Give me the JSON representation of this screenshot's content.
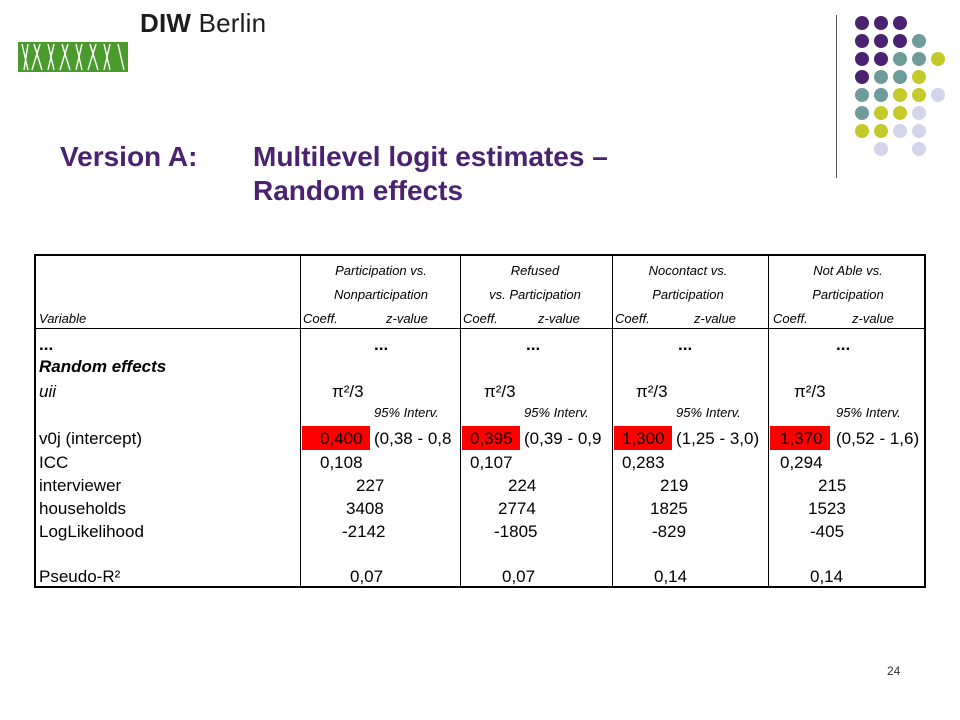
{
  "logo": {
    "brand_bold": "DIW",
    "brand_rest": " Berlin"
  },
  "title": {
    "prefix": "Version A:",
    "line1": "Multilevel logit estimates –",
    "line2": "Random effects"
  },
  "colors": {
    "title": "#4b2270",
    "logo_green": "#4b9a2d",
    "highlight": "#ff0000",
    "dot_purple": "#4b2270",
    "dot_teal": "#6e9c9a",
    "dot_olive": "#c5c92a",
    "dot_lavender": "#d4d4ea"
  },
  "table": {
    "headers": [
      {
        "line1": "Participation vs.",
        "line2": "Nonparticipation"
      },
      {
        "line1": "Refused",
        "line2": "vs. Participation"
      },
      {
        "line1": "Nocontact vs.",
        "line2": "Participation"
      },
      {
        "line1": "Not Able vs.",
        "line2": "Participation"
      }
    ],
    "variable_header": "Variable",
    "coeff_label": "Coeff.",
    "zvalue_label": "z-value",
    "interval_label": "95% Interv.",
    "row_labels": {
      "dots": "...",
      "random_effects": "Random effects",
      "uii": "uii",
      "v0j": "v0j (intercept)",
      "icc": "ICC",
      "interviewer": "interviewer",
      "households": "households",
      "loglik": "LogLikelihood",
      "pseudo": "Pseudo-R²"
    },
    "columns": [
      {
        "dots": "...",
        "uii": "π²/3",
        "v0j": "0,400",
        "v0j_ci": "(0,38 - 0,8",
        "icc": "0,108",
        "interviewer": "227",
        "households": "3408",
        "loglik": "-2142",
        "pseudo": "0,07"
      },
      {
        "dots": "...",
        "uii": "π²/3",
        "v0j": "0,395",
        "v0j_ci": "(0,39 - 0,9",
        "icc": "0,107",
        "interviewer": "224",
        "households": "2774",
        "loglik": "-1805",
        "pseudo": "0,07"
      },
      {
        "dots": "...",
        "uii": "π²/3",
        "v0j": "1,300",
        "v0j_ci": "(1,25 - 3,0)",
        "icc": "0,283",
        "interviewer": "219",
        "households": "1825",
        "loglik": "-829",
        "pseudo": "0,14"
      },
      {
        "dots": "...",
        "uii": "π²/3",
        "v0j": "1,370",
        "v0j_ci": "(0,52 - 1,6)",
        "icc": "0,294",
        "interviewer": "215",
        "households": "1523",
        "loglik": "-405",
        "pseudo": "0,14"
      }
    ]
  },
  "slide_number": "24"
}
